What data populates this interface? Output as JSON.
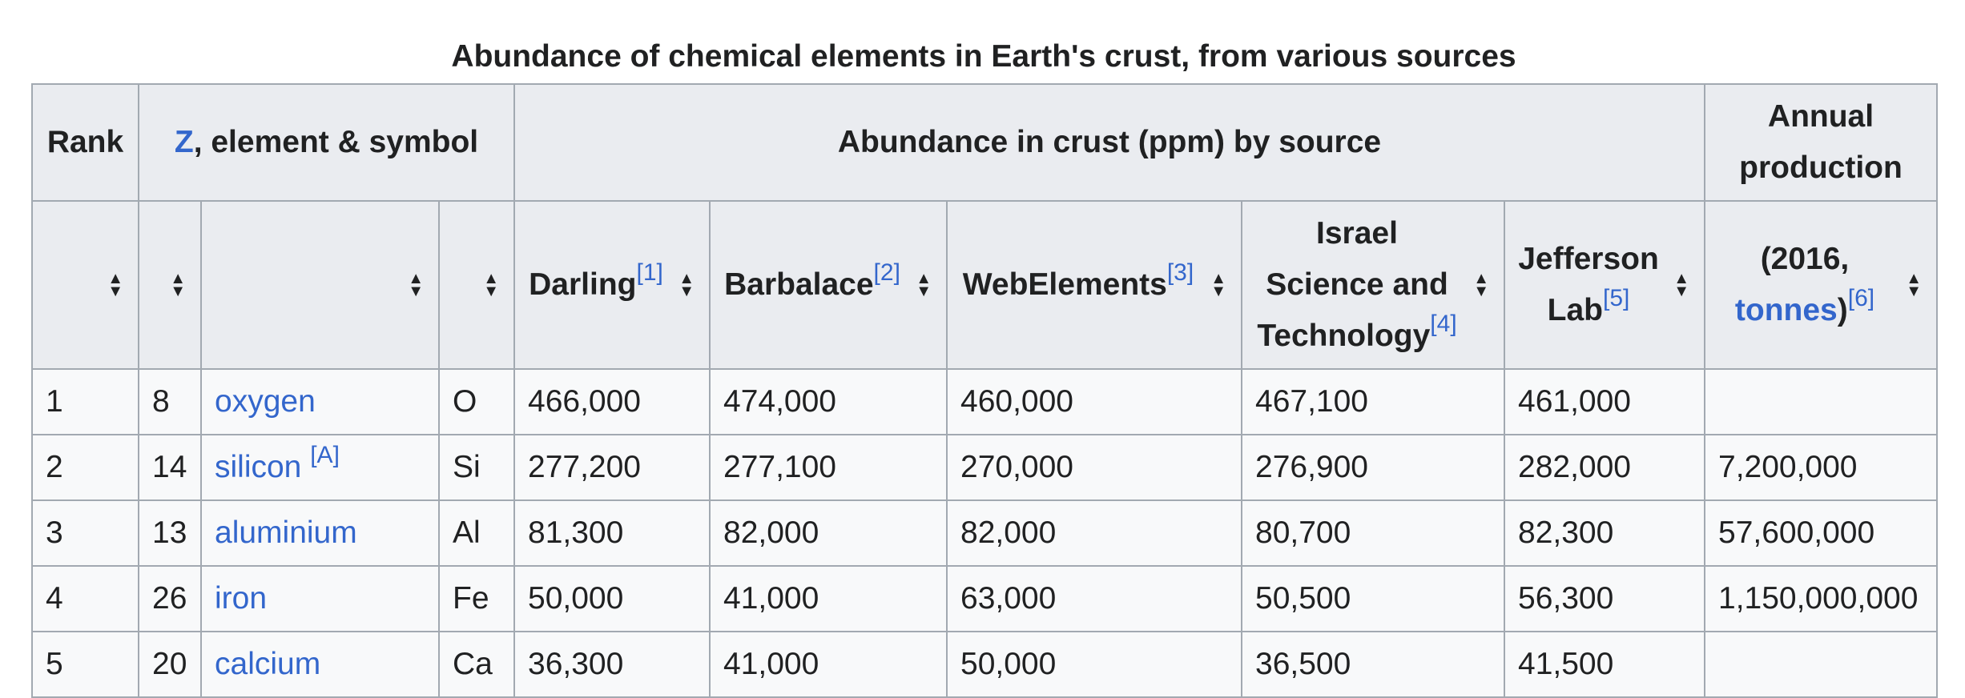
{
  "caption": "Abundance of chemical elements in Earth's crust, from various sources",
  "header": {
    "rank": "Rank",
    "z_link": "Z",
    "z_rest": ", element & symbol",
    "abundance": "Abundance in crust (ppm) by source",
    "annual_production": "Annual production"
  },
  "subheader": {
    "darling": "Darling",
    "darling_ref": "[1]",
    "barbalace": "Barbalace",
    "barbalace_ref": "[2]",
    "webelements": "WebElements",
    "webelements_ref": "[3]",
    "israel_line1": "Israel",
    "israel_line2": "Science and",
    "israel_line3": "Technology",
    "israel_ref": "[4]",
    "jefferson_line1": "Jefferson",
    "jefferson_line2": "Lab",
    "jefferson_ref": "[5]",
    "prod_line1": "(2016,",
    "prod_link": "tonnes",
    "prod_close": ")",
    "prod_ref": "[6]"
  },
  "icons": {
    "sort": "sort-up-down-icon"
  },
  "colors": {
    "link": "#3366cc",
    "header_bg": "#eaecf0",
    "border": "#a2a9b1",
    "cell_bg": "#f8f9fa"
  },
  "rows": [
    {
      "rank": "1",
      "z": "8",
      "element": "oxygen",
      "note": "",
      "symbol": "O",
      "darling": "466,000",
      "barbalace": "474,000",
      "webelements": "460,000",
      "israel": "467,100",
      "jefferson": "461,000",
      "production": ""
    },
    {
      "rank": "2",
      "z": "14",
      "element": "silicon",
      "note": "[A]",
      "symbol": "Si",
      "darling": "277,200",
      "barbalace": "277,100",
      "webelements": "270,000",
      "israel": "276,900",
      "jefferson": "282,000",
      "production": "7,200,000"
    },
    {
      "rank": "3",
      "z": "13",
      "element": "aluminium",
      "note": "",
      "symbol": "Al",
      "darling": "81,300",
      "barbalace": "82,000",
      "webelements": "82,000",
      "israel": "80,700",
      "jefferson": "82,300",
      "production": "57,600,000"
    },
    {
      "rank": "4",
      "z": "26",
      "element": "iron",
      "note": "",
      "symbol": "Fe",
      "darling": "50,000",
      "barbalace": "41,000",
      "webelements": "63,000",
      "israel": "50,500",
      "jefferson": "56,300",
      "production": "1,150,000,000"
    },
    {
      "rank": "5",
      "z": "20",
      "element": "calcium",
      "note": "",
      "symbol": "Ca",
      "darling": "36,300",
      "barbalace": "41,000",
      "webelements": "50,000",
      "israel": "36,500",
      "jefferson": "41,500",
      "production": ""
    }
  ]
}
